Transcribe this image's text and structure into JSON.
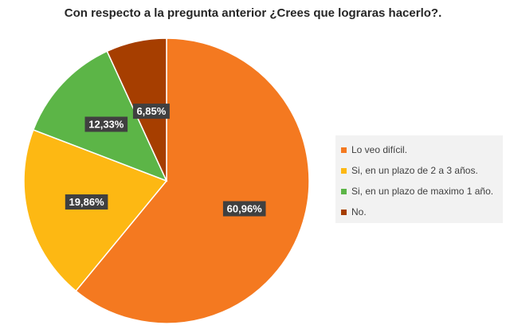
{
  "chart_data": {
    "type": "pie",
    "title": "Con respecto a la pregunta anterior ¿Crees que lograras hacerlo?.",
    "slices": [
      {
        "label": "Lo veo difícil.",
        "value": 60.96,
        "value_label": "60,96%",
        "color": "#f47920"
      },
      {
        "label": "Si, en un plazo de 2 a 3 años.",
        "value": 19.86,
        "value_label": "19,86%",
        "color": "#fdb813"
      },
      {
        "label": "Si, en un plazo de maximo 1 año.",
        "value": 12.33,
        "value_label": "12,33%",
        "color": "#5cb547"
      },
      {
        "label": "No.",
        "value": 6.85,
        "value_label": "6,85%",
        "color": "#a63e00"
      }
    ],
    "legend_position": "right",
    "data_label_style": {
      "background": "#404040",
      "text_color": "#ffffff"
    }
  }
}
